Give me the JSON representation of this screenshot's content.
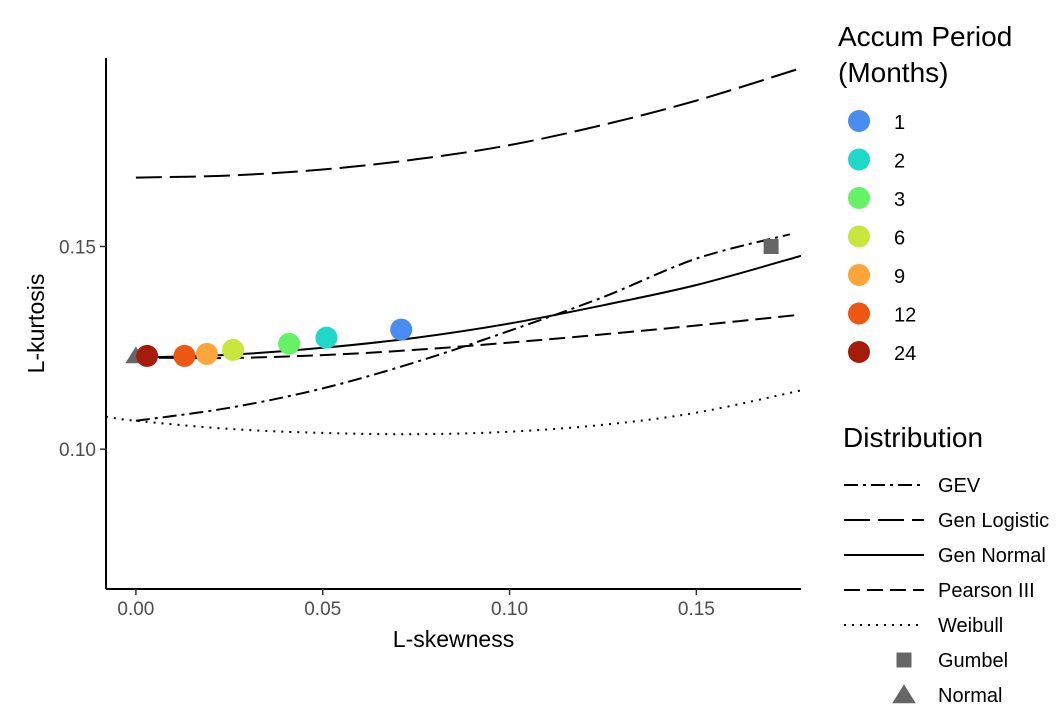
{
  "chart_data": {
    "type": "scatter",
    "xlabel": "L-skewness",
    "ylabel": "L-kurtosis",
    "xlim": [
      -0.008,
      0.178
    ],
    "ylim": [
      0.0655,
      0.1965
    ],
    "x_ticks": [
      "0.00",
      "0.05",
      "0.10",
      "0.15"
    ],
    "x_tick_values": [
      0.0,
      0.05,
      0.1,
      0.15
    ],
    "y_ticks": [
      "0.10",
      "0.15"
    ],
    "y_tick_values": [
      0.1,
      0.15
    ],
    "grid": false,
    "color_legend": {
      "title_lines": [
        "Accum Period",
        "(Months)"
      ],
      "placement": "right"
    },
    "line_legend": {
      "title": "Distribution",
      "placement": "right"
    },
    "points": [
      {
        "label": "1",
        "x": 0.071,
        "y": 0.1295,
        "color": "#4a8df0"
      },
      {
        "label": "2",
        "x": 0.051,
        "y": 0.1275,
        "color": "#1fd8c8"
      },
      {
        "label": "3",
        "x": 0.041,
        "y": 0.126,
        "color": "#66f266"
      },
      {
        "label": "6",
        "x": 0.026,
        "y": 0.1245,
        "color": "#c8e63c"
      },
      {
        "label": "9",
        "x": 0.019,
        "y": 0.1235,
        "color": "#fca53a"
      },
      {
        "label": "12",
        "x": 0.013,
        "y": 0.123,
        "color": "#ee5712"
      },
      {
        "label": "24",
        "x": 0.003,
        "y": 0.123,
        "color": "#a51c0a"
      }
    ],
    "curves": [
      {
        "name": "GEV",
        "dash": "14 5 3 5",
        "x": [
          0.0,
          0.025,
          0.05,
          0.075,
          0.1,
          0.125,
          0.15,
          0.175
        ],
        "y": [
          0.107,
          0.1102,
          0.115,
          0.1215,
          0.1292,
          0.1375,
          0.147,
          0.153
        ]
      },
      {
        "name": "Gen Logistic",
        "dash": "26 8",
        "x": [
          0.0,
          0.025,
          0.05,
          0.075,
          0.1,
          0.125,
          0.15,
          0.178
        ],
        "y": [
          0.167,
          0.1675,
          0.169,
          0.1715,
          0.175,
          0.18,
          0.186,
          0.194
        ]
      },
      {
        "name": "Gen Normal",
        "dash": "",
        "x": [
          0.0,
          0.025,
          0.05,
          0.075,
          0.1,
          0.125,
          0.15,
          0.178
        ],
        "y": [
          0.1226,
          0.1233,
          0.125,
          0.1275,
          0.131,
          0.1355,
          0.1405,
          0.1477
        ]
      },
      {
        "name": "Pearson III",
        "dash": "16 7",
        "x": [
          0.0,
          0.025,
          0.05,
          0.075,
          0.1,
          0.125,
          0.15,
          0.178
        ],
        "y": [
          0.1226,
          0.1225,
          0.1232,
          0.1245,
          0.1263,
          0.1283,
          0.1305,
          0.1332
        ]
      },
      {
        "name": "Weibull",
        "dash": "2 6",
        "x": [
          -0.008,
          0.0,
          0.025,
          0.05,
          0.075,
          0.1,
          0.125,
          0.15,
          0.178
        ],
        "y": [
          0.108,
          0.107,
          0.105,
          0.104,
          0.1037,
          0.1043,
          0.106,
          0.109,
          0.1145
        ]
      }
    ],
    "markers": [
      {
        "name": "Gumbel",
        "shape": "square",
        "x": 0.17,
        "y": 0.15,
        "color": "#666666"
      },
      {
        "name": "Normal",
        "shape": "triangle",
        "x": 0.0,
        "y": 0.123,
        "color": "#666666"
      }
    ]
  }
}
